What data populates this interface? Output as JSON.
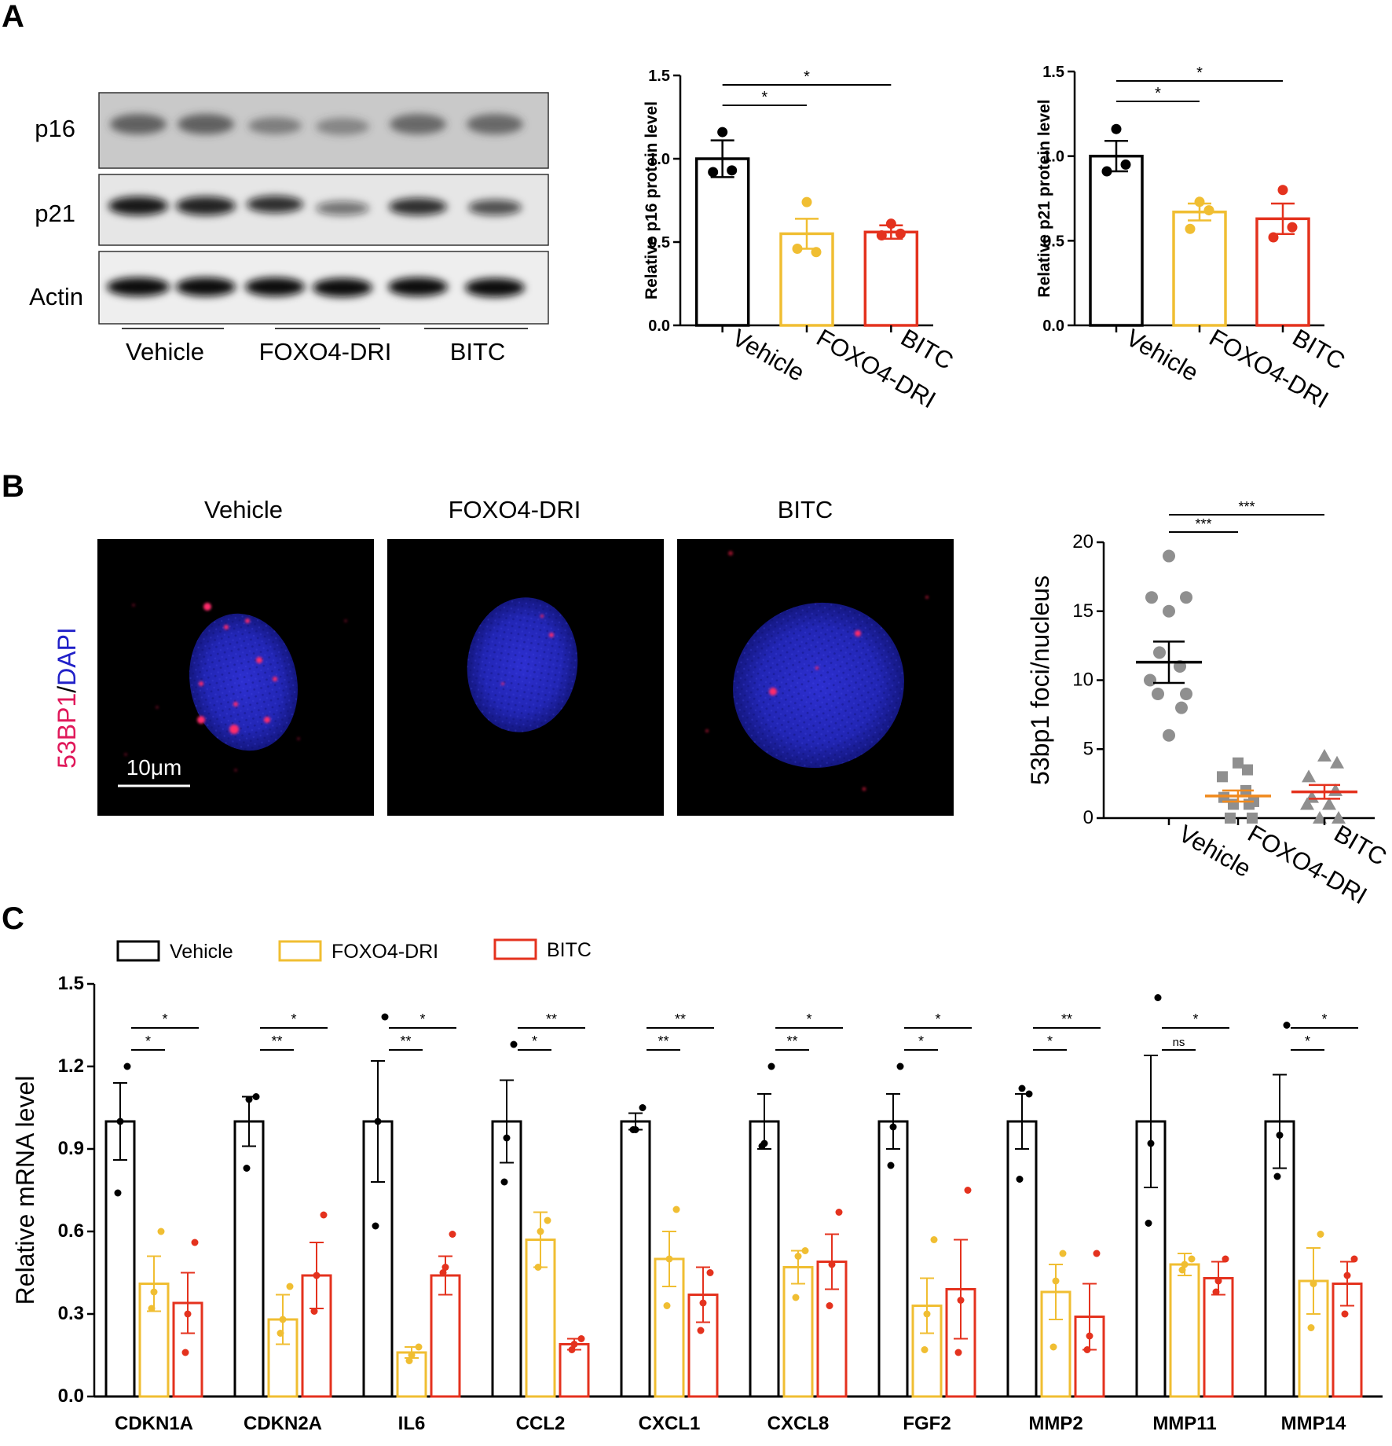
{
  "panel_letters": [
    "A",
    "B",
    "C"
  ],
  "colors": {
    "vehicle": "#000000",
    "foxo4": "#F0BE32",
    "bitc": "#E4321E",
    "b_grey": "#8F8F8F",
    "b_line_orange": "#F08A1E"
  },
  "western_blot": {
    "bands": [
      "p16",
      "p21",
      "Actin"
    ],
    "groups": [
      "Vehicle",
      "FOXO4-DRI",
      "BITC"
    ]
  },
  "immunofluorescence": {
    "titles": [
      "Vehicle",
      "FOXO4-DRI",
      "BITC"
    ],
    "stain_label": {
      "part1": "53BP1",
      "sep": "/",
      "part2": "DAPI"
    },
    "scale_bar": "10μm"
  },
  "chart_data": [
    {
      "id": "p16",
      "type": "bar",
      "categories": [
        "Vehicle",
        "FOXO4-DRI",
        "BITC"
      ],
      "values": [
        1.0,
        0.55,
        0.56
      ],
      "errors": [
        0.11,
        0.09,
        0.04
      ],
      "points": [
        [
          1.16,
          0.92,
          0.93
        ],
        [
          0.74,
          0.46,
          0.44
        ],
        [
          0.61,
          0.54,
          0.55
        ]
      ],
      "ylabel": "Relative p16 protein level",
      "ylim": [
        0,
        1.5
      ],
      "yticks": [
        "0.0",
        "0.5",
        "1.0",
        "1.5"
      ],
      "significance": [
        {
          "from": 0,
          "to": 1,
          "label": "*"
        },
        {
          "from": 0,
          "to": 2,
          "label": "*"
        }
      ]
    },
    {
      "id": "p21",
      "type": "bar",
      "categories": [
        "Vehicle",
        "FOXO4-DRI",
        "BITC"
      ],
      "values": [
        1.0,
        0.67,
        0.63
      ],
      "errors": [
        0.09,
        0.05,
        0.09
      ],
      "points": [
        [
          1.16,
          0.91,
          0.95
        ],
        [
          0.73,
          0.57,
          0.68
        ],
        [
          0.8,
          0.52,
          0.58
        ]
      ],
      "ylabel": "Relative p21 protein level",
      "ylim": [
        0,
        1.5
      ],
      "yticks": [
        "0.0",
        "0.5",
        "1.0",
        "1.5"
      ],
      "significance": [
        {
          "from": 0,
          "to": 1,
          "label": "*"
        },
        {
          "from": 0,
          "to": 2,
          "label": "*"
        }
      ]
    },
    {
      "id": "foci",
      "type": "scatter",
      "categories": [
        "Vehicle",
        "FOXO4-DRI",
        "BITC"
      ],
      "means": [
        11.3,
        1.6,
        1.9
      ],
      "sems": [
        1.5,
        0.4,
        0.5
      ],
      "points": [
        [
          19,
          16,
          16,
          15,
          12,
          11,
          10,
          9,
          9,
          8,
          6
        ],
        [
          4,
          3.5,
          3,
          2,
          1.5,
          1.2,
          1,
          1,
          0,
          0
        ],
        [
          4.5,
          4,
          3,
          2,
          1.5,
          1,
          1,
          0,
          0
        ]
      ],
      "ylabel": "53bp1 foci/nucleus",
      "ylim": [
        0,
        20
      ],
      "yticks": [
        "0",
        "5",
        "10",
        "15",
        "20"
      ],
      "significance": [
        {
          "from": 0,
          "to": 1,
          "label": "***"
        },
        {
          "from": 0,
          "to": 2,
          "label": "***"
        }
      ]
    },
    {
      "id": "mrna",
      "type": "bar",
      "categories": [
        "CDKN1A",
        "CDKN2A",
        "IL6",
        "CCL2",
        "CXCL1",
        "CXCL8",
        "FGF2",
        "MMP2",
        "MMP11",
        "MMP14"
      ],
      "legend": [
        "Vehicle",
        "FOXO4-DRI",
        "BITC"
      ],
      "ylabel": "Relative  mRNA  level",
      "ylim": [
        0,
        1.5
      ],
      "yticks": [
        "0.0",
        "0.3",
        "0.6",
        "0.9",
        "1.2",
        "1.5"
      ],
      "series": [
        {
          "values": [
            1.0,
            1.0,
            1.0,
            1.0,
            1.0,
            1.0,
            1.0,
            1.0,
            1.0,
            1.0
          ],
          "errors": [
            0.14,
            0.09,
            0.22,
            0.15,
            0.03,
            0.1,
            0.1,
            0.1,
            0.24,
            0.17
          ],
          "points": [
            [
              1.2,
              1.0,
              0.74
            ],
            [
              1.09,
              1.08,
              0.83
            ],
            [
              1.38,
              1.0,
              0.62
            ],
            [
              1.28,
              0.94,
              0.78
            ],
            [
              1.05,
              0.97,
              0.97
            ],
            [
              1.2,
              0.92,
              0.91
            ],
            [
              1.2,
              0.98,
              0.84
            ],
            [
              1.1,
              1.12,
              0.79
            ],
            [
              1.45,
              0.92,
              0.63
            ],
            [
              1.35,
              0.95,
              0.8
            ]
          ]
        },
        {
          "values": [
            0.41,
            0.28,
            0.16,
            0.57,
            0.5,
            0.47,
            0.33,
            0.38,
            0.48,
            0.42
          ],
          "errors": [
            0.1,
            0.09,
            0.02,
            0.1,
            0.1,
            0.06,
            0.1,
            0.1,
            0.04,
            0.12
          ],
          "points": [
            [
              0.6,
              0.38,
              0.32
            ],
            [
              0.4,
              0.28,
              0.23
            ],
            [
              0.18,
              0.15,
              0.13
            ],
            [
              0.64,
              0.6,
              0.47
            ],
            [
              0.68,
              0.5,
              0.33
            ],
            [
              0.53,
              0.51,
              0.36
            ],
            [
              0.57,
              0.3,
              0.17
            ],
            [
              0.52,
              0.42,
              0.18
            ],
            [
              0.5,
              0.48,
              0.46
            ],
            [
              0.59,
              0.41,
              0.25
            ]
          ]
        },
        {
          "values": [
            0.34,
            0.44,
            0.44,
            0.19,
            0.37,
            0.49,
            0.39,
            0.29,
            0.43,
            0.41
          ],
          "errors": [
            0.11,
            0.12,
            0.07,
            0.02,
            0.1,
            0.1,
            0.18,
            0.12,
            0.06,
            0.08
          ],
          "points": [
            [
              0.56,
              0.3,
              0.16
            ],
            [
              0.66,
              0.44,
              0.31
            ],
            [
              0.59,
              0.47,
              0.45
            ],
            [
              0.21,
              0.19,
              0.17
            ],
            [
              0.45,
              0.34,
              0.24
            ],
            [
              0.67,
              0.48,
              0.33
            ],
            [
              0.75,
              0.35,
              0.16
            ],
            [
              0.52,
              0.22,
              0.17
            ],
            [
              0.5,
              0.42,
              0.38
            ],
            [
              0.5,
              0.44,
              0.3
            ]
          ]
        }
      ],
      "significance": [
        [
          {
            "label": "*",
            "to": 1
          },
          {
            "label": "*",
            "to": 2
          }
        ],
        [
          {
            "label": "**",
            "to": 1
          },
          {
            "label": "*",
            "to": 2
          }
        ],
        [
          {
            "label": "**",
            "to": 1
          },
          {
            "label": "*",
            "to": 2
          }
        ],
        [
          {
            "label": "*",
            "to": 1
          },
          {
            "label": "**",
            "to": 2
          }
        ],
        [
          {
            "label": "**",
            "to": 1
          },
          {
            "label": "**",
            "to": 2
          }
        ],
        [
          {
            "label": "**",
            "to": 1
          },
          {
            "label": "*",
            "to": 2
          }
        ],
        [
          {
            "label": "*",
            "to": 1
          },
          {
            "label": "*",
            "to": 2
          }
        ],
        [
          {
            "label": "*",
            "to": 1
          },
          {
            "label": "**",
            "to": 2
          }
        ],
        [
          {
            "label": "ns",
            "to": 1
          },
          {
            "label": "*",
            "to": 2
          }
        ],
        [
          {
            "label": "*",
            "to": 1
          },
          {
            "label": "*",
            "to": 2
          }
        ]
      ]
    }
  ]
}
